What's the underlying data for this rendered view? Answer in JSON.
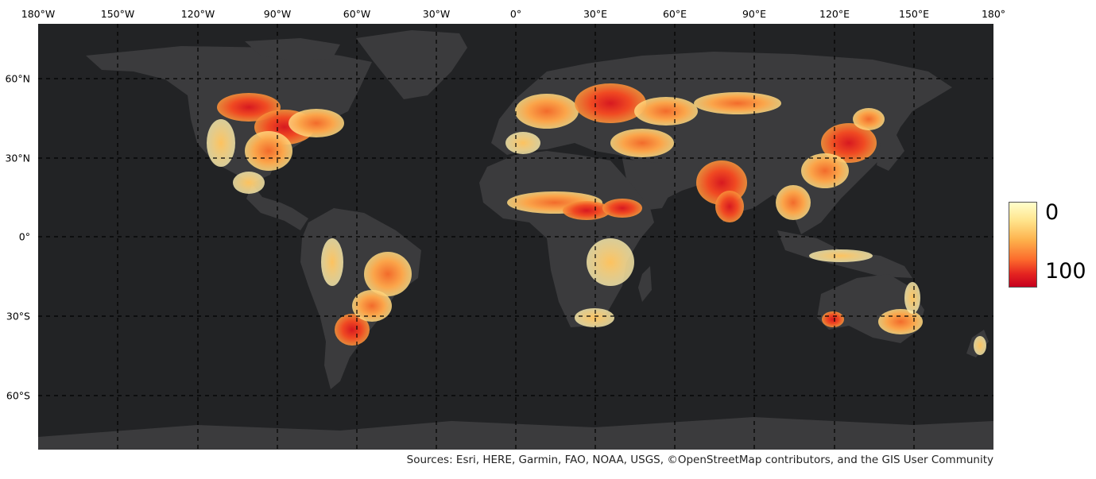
{
  "map": {
    "lon_ticks": [
      "180°W",
      "150°W",
      "120°W",
      "90°W",
      "60°W",
      "30°W",
      "0°",
      "30°E",
      "60°E",
      "90°E",
      "120°E",
      "150°E",
      "180°"
    ],
    "lat_ticks": [
      "60°N",
      "30°N",
      "0°",
      "30°S",
      "60°S"
    ],
    "basemap": "dark-gray-canvas",
    "graticule": "dashed",
    "colors": {
      "ocean": "#222325",
      "land": "#3b3b3d",
      "graticule": "#000000"
    }
  },
  "legend": {
    "min_label": "0",
    "max_label": "100",
    "color_low": "#ffffcc",
    "color_high": "#c5001e"
  },
  "attribution": "Sources: Esri, HERE, Garmin, FAO, NOAA, USGS, ©OpenStreetMap contributors, and the GIS User Community"
}
